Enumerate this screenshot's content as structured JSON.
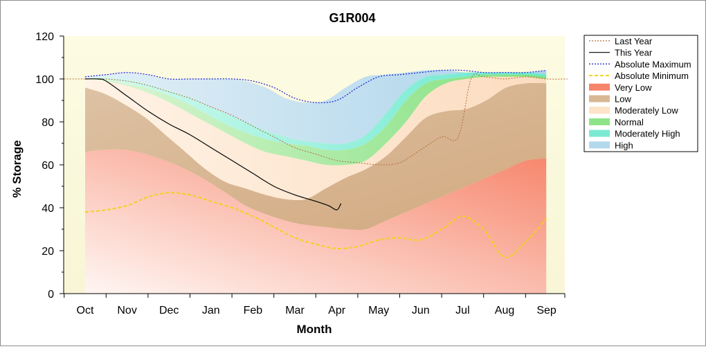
{
  "chart_data": {
    "type": "area",
    "title": "G1R004",
    "xlabel": "Month",
    "ylabel": "% Storage",
    "ylim": [
      0,
      120
    ],
    "yticks": [
      0,
      20,
      40,
      60,
      80,
      100,
      120
    ],
    "categories": [
      "Oct",
      "Nov",
      "Dec",
      "Jan",
      "Feb",
      "Mar",
      "Apr",
      "May",
      "Jun",
      "Jul",
      "Aug",
      "Sep"
    ],
    "grid": false,
    "legend_position": "right",
    "bands": [
      {
        "name": "Very Low",
        "color": "#f6846a",
        "lower": [
          0,
          0,
          0,
          0,
          0,
          0,
          0,
          0,
          0,
          0,
          0,
          0,
          0,
          0,
          0,
          0,
          0,
          0,
          0,
          0,
          0,
          0,
          0,
          0
        ],
        "upper": [
          66,
          67,
          67,
          65,
          62,
          58,
          53,
          47,
          41,
          37,
          34,
          32,
          31,
          30,
          30,
          34,
          38,
          42,
          46,
          50,
          54,
          58,
          62,
          63
        ]
      },
      {
        "name": "Low",
        "color": "#d8b894",
        "lower": [
          66,
          67,
          67,
          65,
          62,
          58,
          53,
          47,
          41,
          37,
          34,
          32,
          31,
          30,
          30,
          34,
          38,
          42,
          46,
          50,
          54,
          58,
          62,
          63
        ],
        "upper": [
          96,
          93,
          88,
          82,
          74,
          66,
          58,
          52,
          49,
          46,
          44,
          44,
          49,
          54,
          58,
          64,
          73,
          82,
          85,
          86,
          90,
          96,
          98,
          98
        ]
      },
      {
        "name": "Moderately Low",
        "color": "#fde3c8",
        "lower": [
          96,
          93,
          88,
          82,
          74,
          66,
          58,
          52,
          49,
          46,
          44,
          44,
          49,
          54,
          58,
          64,
          73,
          82,
          85,
          86,
          90,
          96,
          98,
          98
        ],
        "upper": [
          100,
          99,
          97,
          94,
          90,
          85,
          80,
          75,
          70,
          66,
          64,
          62,
          60,
          60,
          62,
          70,
          80,
          92,
          98,
          100,
          101,
          101,
          101,
          100
        ]
      },
      {
        "name": "Normal",
        "color": "#8ee38a",
        "lower": [
          100,
          99,
          97,
          94,
          90,
          85,
          80,
          75,
          70,
          66,
          64,
          62,
          60,
          60,
          62,
          70,
          80,
          92,
          98,
          100,
          101,
          101,
          101,
          100
        ],
        "upper": [
          100,
          100,
          98,
          96,
          93,
          89,
          84,
          79,
          75,
          72,
          70,
          69,
          67,
          67,
          70,
          78,
          90,
          98,
          100,
          101,
          102,
          102,
          102,
          101
        ]
      },
      {
        "name": "Moderately High",
        "color": "#7be9d3",
        "lower": [
          100,
          100,
          98,
          96,
          93,
          89,
          84,
          79,
          75,
          72,
          70,
          69,
          67,
          67,
          70,
          78,
          90,
          98,
          100,
          101,
          102,
          102,
          102,
          101
        ],
        "upper": [
          100,
          101,
          100,
          98,
          95,
          92,
          88,
          84,
          80,
          76,
          73,
          71,
          70,
          70,
          74,
          84,
          95,
          101,
          102,
          103,
          103,
          103,
          103,
          102
        ]
      },
      {
        "name": "High",
        "color": "#b4d8ec",
        "lower": [
          100,
          101,
          100,
          98,
          95,
          92,
          88,
          84,
          80,
          76,
          73,
          71,
          70,
          70,
          74,
          84,
          95,
          101,
          102,
          103,
          103,
          103,
          103,
          102
        ],
        "upper": [
          101,
          102,
          103,
          102,
          100,
          100,
          100,
          100,
          99,
          96,
          91,
          89,
          90,
          96,
          101,
          102,
          103,
          104,
          104,
          103,
          103,
          103,
          103,
          104
        ]
      }
    ],
    "series": [
      {
        "name": "Last Year",
        "color": "#b06a3a",
        "style": "dotted",
        "x": [
          -0.5,
          0,
          0.5,
          1,
          1.5,
          2,
          2.5,
          3,
          3.5,
          4,
          4.5,
          5,
          5.5,
          6,
          6.5,
          7,
          7.5,
          8,
          8.5,
          8.9,
          9.2,
          9.5,
          10,
          10.5,
          11,
          11.5
        ],
        "y": [
          100,
          100,
          100,
          99,
          97,
          94,
          91,
          87,
          83,
          78,
          73,
          68,
          65,
          62,
          61,
          60,
          61,
          67,
          73,
          73,
          100,
          101,
          100,
          101,
          100,
          100
        ]
      },
      {
        "name": "This Year",
        "color": "#000000",
        "style": "solid",
        "x": [
          0,
          0.3,
          0.5,
          1,
          1.5,
          2,
          2.5,
          3,
          3.5,
          4,
          4.5,
          5,
          5.5,
          5.8,
          6,
          6.1
        ],
        "y": [
          100,
          100,
          99,
          92,
          85,
          79,
          74,
          68,
          62,
          56,
          50,
          46,
          43,
          41,
          39,
          42
        ]
      },
      {
        "name": "Absolute Maximum",
        "color": "#1c1cd0",
        "style": "dotted",
        "x": [
          0,
          0.5,
          1,
          1.5,
          2,
          2.5,
          3,
          3.5,
          4,
          4.5,
          5,
          5.5,
          6,
          6.5,
          7,
          7.5,
          8,
          8.5,
          9,
          9.5,
          10,
          10.5,
          11
        ],
        "y": [
          101,
          102,
          103,
          102,
          100,
          100,
          100,
          100,
          99,
          96,
          91,
          89,
          90,
          96,
          101,
          102,
          103,
          104,
          104,
          103,
          103,
          103,
          104
        ]
      },
      {
        "name": "Absolute Minimum",
        "color": "#f2d21a",
        "style": "dashed",
        "x": [
          0,
          0.5,
          1,
          1.5,
          2,
          2.5,
          3,
          3.5,
          4,
          4.5,
          5,
          5.5,
          6,
          6.5,
          7,
          7.5,
          8,
          8.5,
          9,
          9.5,
          10,
          10.5,
          11
        ],
        "y": [
          38,
          39,
          41,
          45,
          47,
          46,
          43,
          40,
          36,
          31,
          26,
          23,
          21,
          22,
          25,
          26,
          25,
          30,
          36,
          30,
          17,
          24,
          35
        ]
      }
    ],
    "band_x_start": 0,
    "band_x_step": 0.478
  }
}
